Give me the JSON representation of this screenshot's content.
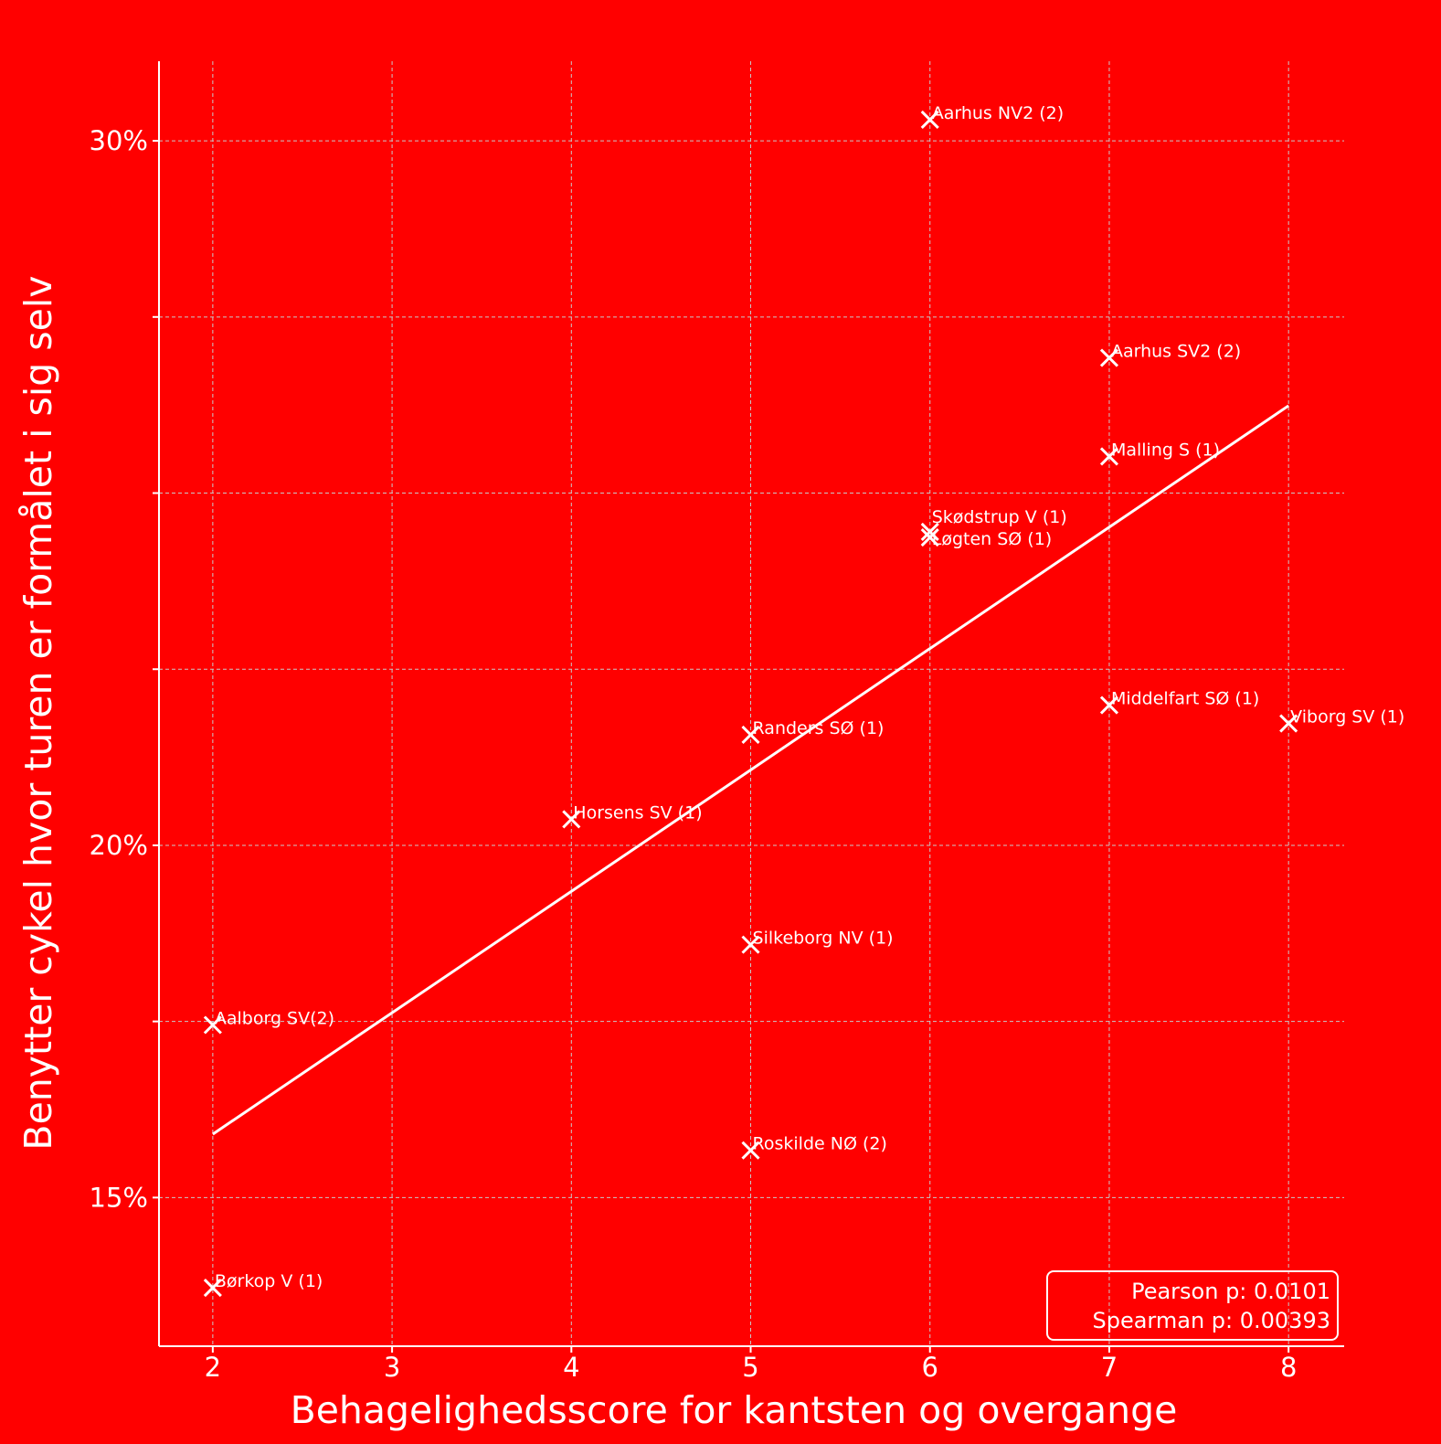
{
  "chart_data": {
    "type": "scatter",
    "xlabel": "Behagelighedsscore for kantsten og overgange",
    "ylabel": "Benytter cykel hvor turen er formålet i sig selv",
    "xlim": [
      1.7,
      8.31
    ],
    "ylim": [
      12.89,
      31.13
    ],
    "xticks": [
      2,
      3,
      4,
      5,
      6,
      7,
      8
    ],
    "xtick_labels": [
      "2",
      "3",
      "4",
      "5",
      "6",
      "7",
      "8"
    ],
    "yticks": [
      15,
      20,
      30
    ],
    "ytick_labels": [
      "15%",
      "20%",
      "30%"
    ],
    "ygrid": [
      15,
      17.5,
      20,
      22.5,
      25,
      27.5,
      30
    ],
    "grid": true,
    "points": [
      {
        "label": "Aarhus NV2 (2)",
        "x": 6,
        "y": 30.3
      },
      {
        "label": "Aarhus SV2 (2)",
        "x": 7,
        "y": 26.92
      },
      {
        "label": "Malling S (1)",
        "x": 7,
        "y": 25.52
      },
      {
        "label": "Skødstrup V (1)",
        "x": 6,
        "y": 24.45
      },
      {
        "label": "Løgten SØ (1)",
        "x": 6,
        "y": 24.37
      },
      {
        "label": "Middelfart SØ (1)",
        "x": 7,
        "y": 21.99
      },
      {
        "label": "Viborg SV (1)",
        "x": 8,
        "y": 21.73
      },
      {
        "label": "Randers SØ (1)",
        "x": 5,
        "y": 21.57
      },
      {
        "label": "Horsens SV (1)",
        "x": 4,
        "y": 20.37
      },
      {
        "label": "Silkeborg NV (1)",
        "x": 5,
        "y": 18.59
      },
      {
        "label": "Aalborg SV(2)",
        "x": 2,
        "y": 17.45
      },
      {
        "label": "Roskilde NØ (2)",
        "x": 5,
        "y": 15.67
      },
      {
        "label": "Børkop V (1)",
        "x": 2,
        "y": 13.72
      }
    ],
    "trendline": {
      "x": [
        2,
        8
      ],
      "y": [
        15.9,
        26.24
      ]
    },
    "stats": [
      "Pearson p: 0.0101",
      "Spearman p: 0.00393"
    ],
    "colors": {
      "background": "#ff0000",
      "foreground": "#ffffff",
      "grid": "#c8c8c8"
    }
  }
}
